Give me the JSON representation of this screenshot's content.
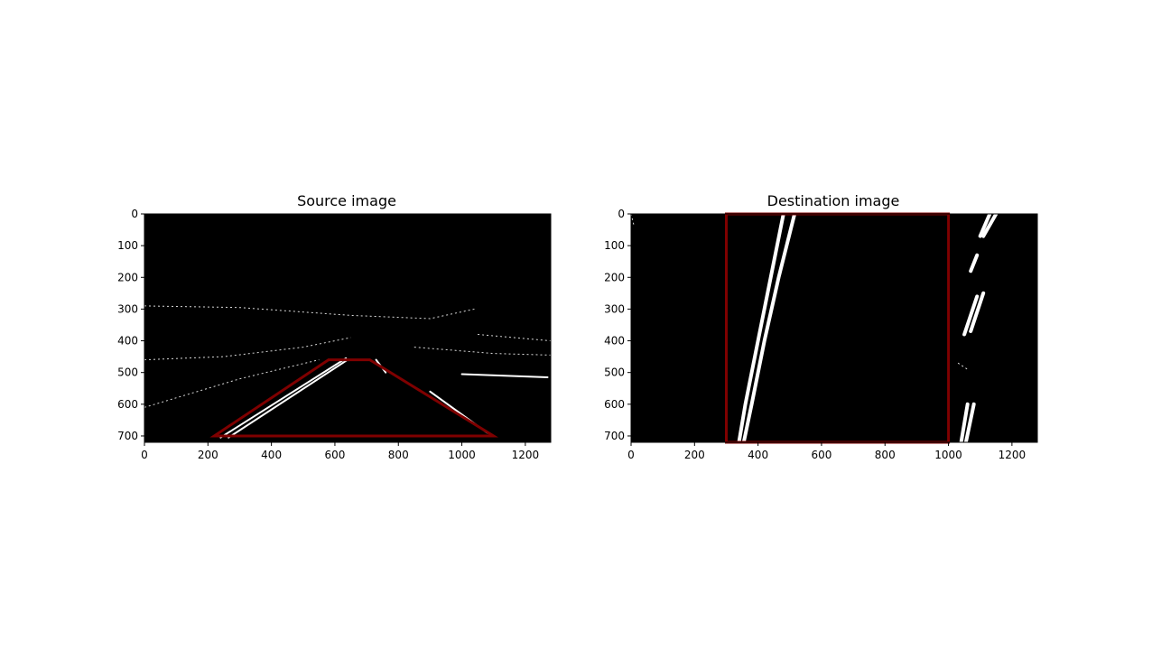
{
  "colors": {
    "image_background": "#000000",
    "roi_outline": "#7f0000",
    "edge_pixels": "#ffffff"
  },
  "chart_data": [
    {
      "type": "image",
      "title": "Source image",
      "xlim": [
        0,
        1280
      ],
      "ylim": [
        720,
        0
      ],
      "x_ticks": [
        0,
        200,
        400,
        600,
        800,
        1000,
        1200
      ],
      "y_ticks": [
        0,
        100,
        200,
        300,
        400,
        500,
        600,
        700
      ],
      "roi_polygon": [
        [
          220,
          700
        ],
        [
          580,
          460
        ],
        [
          710,
          460
        ],
        [
          1100,
          700
        ]
      ],
      "lane_lines": [
        [
          [
            240,
            705
          ],
          [
            635,
            455
          ]
        ],
        [
          [
            265,
            705
          ],
          [
            640,
            460
          ]
        ],
        [
          [
            900,
            560
          ],
          [
            1080,
            690
          ]
        ],
        [
          [
            730,
            460
          ],
          [
            760,
            500
          ]
        ],
        [
          [
            1000,
            505
          ],
          [
            1270,
            515
          ]
        ]
      ],
      "edge_segments": [
        [
          [
            0,
            290
          ],
          [
            300,
            295
          ],
          [
            650,
            320
          ],
          [
            900,
            330
          ],
          [
            1040,
            300
          ]
        ],
        [
          [
            0,
            460
          ],
          [
            250,
            450
          ],
          [
            500,
            420
          ],
          [
            650,
            390
          ]
        ],
        [
          [
            0,
            610
          ],
          [
            300,
            520
          ],
          [
            550,
            460
          ]
        ],
        [
          [
            1050,
            380
          ],
          [
            1280,
            400
          ]
        ],
        [
          [
            850,
            420
          ],
          [
            1100,
            440
          ],
          [
            1280,
            445
          ]
        ]
      ]
    },
    {
      "type": "image",
      "title": "Destination image",
      "xlim": [
        0,
        1280
      ],
      "ylim": [
        720,
        0
      ],
      "x_ticks": [
        0,
        200,
        400,
        600,
        800,
        1000,
        1200
      ],
      "y_ticks": [
        0,
        100,
        200,
        300,
        400,
        500,
        600,
        700
      ],
      "roi_polygon": [
        [
          300,
          0
        ],
        [
          1000,
          0
        ],
        [
          1000,
          720
        ],
        [
          300,
          720
        ]
      ],
      "lane_lines": [
        [
          [
            480,
            0
          ],
          [
            440,
            200
          ],
          [
            400,
            400
          ],
          [
            360,
            600
          ],
          [
            340,
            720
          ]
        ],
        [
          [
            515,
            0
          ],
          [
            465,
            200
          ],
          [
            420,
            400
          ],
          [
            380,
            600
          ],
          [
            355,
            720
          ]
        ],
        [
          [
            1130,
            0
          ],
          [
            1100,
            70
          ]
        ],
        [
          [
            1150,
            0
          ],
          [
            1110,
            70
          ]
        ],
        [
          [
            1090,
            130
          ],
          [
            1070,
            180
          ]
        ],
        [
          [
            1090,
            260
          ],
          [
            1050,
            380
          ]
        ],
        [
          [
            1110,
            250
          ],
          [
            1070,
            370
          ]
        ],
        [
          [
            1060,
            600
          ],
          [
            1040,
            720
          ]
        ],
        [
          [
            1080,
            600
          ],
          [
            1055,
            720
          ]
        ]
      ],
      "edge_segments": [
        [
          [
            0,
            0
          ],
          [
            10,
            40
          ]
        ],
        [
          [
            1030,
            470
          ],
          [
            1060,
            490
          ]
        ]
      ]
    }
  ]
}
